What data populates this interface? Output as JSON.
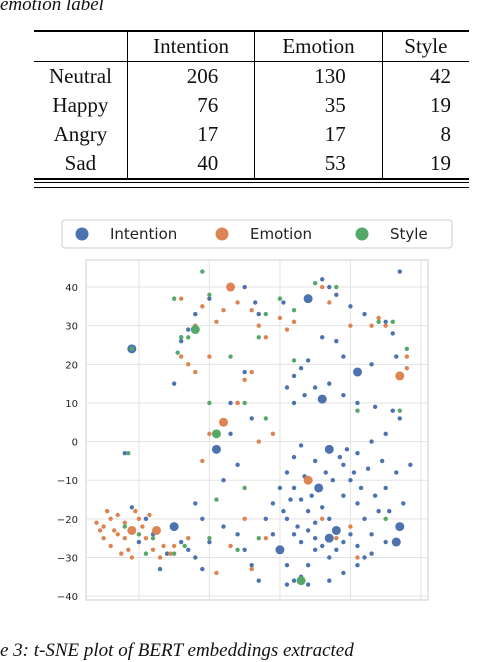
{
  "paper": {
    "top_caption": "emotion label",
    "bottom_caption": "e 3:  t-SNE plot of BERT embeddings extracted"
  },
  "table": {
    "columns": [
      "",
      "Intention",
      "Emotion",
      "Style"
    ],
    "rows": [
      {
        "label": "Neutral",
        "values": [
          "206",
          "130",
          "42"
        ]
      },
      {
        "label": "Happy",
        "values": [
          "76",
          "35",
          "19"
        ]
      },
      {
        "label": "Angry",
        "values": [
          "17",
          "17",
          "8"
        ]
      },
      {
        "label": "Sad",
        "values": [
          "40",
          "53",
          "19"
        ]
      }
    ]
  },
  "chart_data": {
    "type": "scatter",
    "title": "",
    "xlabel": "",
    "ylabel": "",
    "xlim": [
      -55,
      42
    ],
    "ylim": [
      -41,
      47
    ],
    "xticks": [
      -40,
      -20,
      0,
      20,
      40
    ],
    "yticks": [
      -40,
      -30,
      -20,
      -10,
      0,
      10,
      20,
      30,
      40
    ],
    "grid": true,
    "legend": "top",
    "series": [
      {
        "name": "Intention",
        "color": "#4c72b0",
        "points": [
          [
            -42,
            24
          ],
          [
            -28,
            27
          ],
          [
            -26,
            29
          ],
          [
            -30,
            15
          ],
          [
            -28,
            26
          ],
          [
            -24,
            33
          ],
          [
            -20,
            37
          ],
          [
            -10,
            40
          ],
          [
            -7,
            36
          ],
          [
            -6,
            33
          ],
          [
            1,
            36
          ],
          [
            8,
            37
          ],
          [
            12,
            42
          ],
          [
            14,
            40
          ],
          [
            16,
            38
          ],
          [
            20,
            35
          ],
          [
            24,
            33
          ],
          [
            30,
            31
          ],
          [
            34,
            44
          ],
          [
            33,
            22
          ],
          [
            32,
            28
          ],
          [
            26,
            20
          ],
          [
            22,
            18
          ],
          [
            18,
            22
          ],
          [
            16,
            26
          ],
          [
            12,
            27
          ],
          [
            8,
            21
          ],
          [
            6,
            19
          ],
          [
            4,
            17
          ],
          [
            2,
            14
          ],
          [
            4,
            10
          ],
          [
            7,
            12
          ],
          [
            10,
            14
          ],
          [
            12,
            11
          ],
          [
            14,
            15
          ],
          [
            18,
            12
          ],
          [
            22,
            10
          ],
          [
            27,
            9
          ],
          [
            32,
            8
          ],
          [
            34,
            6
          ],
          [
            30,
            2
          ],
          [
            26,
            0
          ],
          [
            22,
            -3
          ],
          [
            18,
            -6
          ],
          [
            14,
            -2
          ],
          [
            10,
            -5
          ],
          [
            6,
            -1
          ],
          [
            4,
            -4
          ],
          [
            2,
            -8
          ],
          [
            4,
            -12
          ],
          [
            6,
            -15
          ],
          [
            8,
            -18
          ],
          [
            10,
            -21
          ],
          [
            12,
            -17
          ],
          [
            14,
            -20
          ],
          [
            16,
            -23
          ],
          [
            18,
            -14
          ],
          [
            20,
            -10
          ],
          [
            22,
            -16
          ],
          [
            24,
            -20
          ],
          [
            26,
            -24
          ],
          [
            28,
            -18
          ],
          [
            30,
            -12
          ],
          [
            33,
            -8
          ],
          [
            35,
            -16
          ],
          [
            37,
            -6
          ],
          [
            34,
            -22
          ],
          [
            30,
            -26
          ],
          [
            26,
            -29
          ],
          [
            22,
            -32
          ],
          [
            18,
            -34
          ],
          [
            14,
            -30
          ],
          [
            10,
            -28
          ],
          [
            8,
            -32
          ],
          [
            6,
            -35
          ],
          [
            4,
            -36
          ],
          [
            2,
            -32
          ],
          [
            0,
            -28
          ],
          [
            -2,
            -24
          ],
          [
            -4,
            -20
          ],
          [
            -2,
            -16
          ],
          [
            0,
            -12
          ],
          [
            2,
            -20
          ],
          [
            4,
            -24
          ],
          [
            6,
            -26
          ],
          [
            8,
            -23
          ],
          [
            10,
            -25
          ],
          [
            12,
            -27
          ],
          [
            14,
            -25
          ],
          [
            16,
            -28
          ],
          [
            18,
            -26
          ],
          [
            20,
            -24
          ],
          [
            22,
            -27
          ],
          [
            24,
            -30
          ],
          [
            1,
            -18
          ],
          [
            3,
            -15
          ],
          [
            5,
            -22
          ],
          [
            7,
            -9
          ],
          [
            9,
            -14
          ],
          [
            11,
            -12
          ],
          [
            13,
            -8
          ],
          [
            15,
            -10
          ],
          [
            17,
            -4
          ],
          [
            19,
            -2
          ],
          [
            21,
            -8
          ],
          [
            23,
            -12
          ],
          [
            25,
            -7
          ],
          [
            27,
            -14
          ],
          [
            29,
            -5
          ],
          [
            31,
            -18
          ],
          [
            33,
            -26
          ],
          [
            -6,
            -36
          ],
          [
            -8,
            -32
          ],
          [
            -10,
            -28
          ],
          [
            -12,
            -24
          ],
          [
            -16,
            -22
          ],
          [
            -20,
            -26
          ],
          [
            -22,
            -33
          ],
          [
            -24,
            -30
          ],
          [
            -26,
            -28
          ],
          [
            -28,
            -26
          ],
          [
            -30,
            -22
          ],
          [
            -32,
            -29
          ],
          [
            -34,
            -33
          ],
          [
            -36,
            -24
          ],
          [
            -38,
            -20
          ],
          [
            -40,
            -26
          ],
          [
            -42,
            -17
          ],
          [
            -44,
            -3
          ],
          [
            -16,
            -10
          ],
          [
            -12,
            -6
          ],
          [
            -14,
            2
          ],
          [
            -18,
            -2
          ],
          [
            -22,
            -20
          ],
          [
            -24,
            -16
          ],
          [
            -10,
            18
          ],
          [
            -14,
            10
          ],
          [
            -8,
            6
          ],
          [
            14,
            -36
          ],
          [
            8,
            -37
          ],
          [
            2,
            -37
          ]
        ]
      },
      {
        "name": "Emotion",
        "color": "#dd8452",
        "points": [
          [
            -50,
            -22
          ],
          [
            -48,
            -20
          ],
          [
            -46,
            -24
          ],
          [
            -44,
            -21
          ],
          [
            -52,
            -21
          ],
          [
            -50,
            -25
          ],
          [
            -48,
            -27
          ],
          [
            -46,
            -19
          ],
          [
            -44,
            -25
          ],
          [
            -42,
            -23
          ],
          [
            -40,
            -20
          ],
          [
            -47,
            -23
          ],
          [
            -49,
            -18
          ],
          [
            -51,
            -23
          ],
          [
            -43,
            -28
          ],
          [
            -38,
            -25
          ],
          [
            -36,
            -28
          ],
          [
            -34,
            -30
          ],
          [
            -33,
            -27
          ],
          [
            -31,
            -29
          ],
          [
            -35,
            -23
          ],
          [
            -37,
            -19
          ],
          [
            -42,
            -30
          ],
          [
            -45,
            -29
          ],
          [
            -41,
            -18
          ],
          [
            -39,
            -22
          ],
          [
            -28,
            37
          ],
          [
            -24,
            30
          ],
          [
            -22,
            35
          ],
          [
            -18,
            31
          ],
          [
            -16,
            34
          ],
          [
            -14,
            40
          ],
          [
            -12,
            36
          ],
          [
            -8,
            34
          ],
          [
            -6,
            30
          ],
          [
            -4,
            27
          ],
          [
            0,
            32
          ],
          [
            2,
            29
          ],
          [
            4,
            31
          ],
          [
            -8,
            18
          ],
          [
            -10,
            16
          ],
          [
            -12,
            10
          ],
          [
            -16,
            5
          ],
          [
            -20,
            2
          ],
          [
            -22,
            -5
          ],
          [
            -6,
            0
          ],
          [
            -2,
            2
          ],
          [
            20,
            30
          ],
          [
            26,
            30
          ],
          [
            28,
            32
          ],
          [
            30,
            30
          ],
          [
            36,
            22
          ],
          [
            36,
            19
          ],
          [
            34,
            17
          ],
          [
            12,
            40
          ],
          [
            14,
            36
          ],
          [
            -26,
            20
          ],
          [
            -28,
            22
          ],
          [
            -24,
            18
          ],
          [
            -20,
            22
          ],
          [
            12,
            -20
          ],
          [
            16,
            -25
          ],
          [
            20,
            -22
          ],
          [
            22,
            -30
          ],
          [
            8,
            -10
          ],
          [
            -10,
            -20
          ],
          [
            -14,
            -27
          ],
          [
            -18,
            -34
          ],
          [
            -26,
            -25
          ],
          [
            -30,
            -27
          ],
          [
            -4,
            -25
          ],
          [
            -8,
            -33
          ],
          [
            -12,
            10
          ]
        ]
      },
      {
        "name": "Style",
        "color": "#55a868",
        "points": [
          [
            -43,
            -3
          ],
          [
            -30,
            37
          ],
          [
            -28,
            27
          ],
          [
            -26,
            27
          ],
          [
            -20,
            38
          ],
          [
            -22,
            44
          ],
          [
            -42,
            24
          ],
          [
            -24,
            29
          ],
          [
            -29,
            23
          ],
          [
            -20,
            10
          ],
          [
            -14,
            22
          ],
          [
            -10,
            10
          ],
          [
            -6,
            27
          ],
          [
            -4,
            33
          ],
          [
            0,
            37
          ],
          [
            4,
            34
          ],
          [
            10,
            41
          ],
          [
            16,
            40
          ],
          [
            6,
            -36
          ],
          [
            32,
            31
          ],
          [
            28,
            31
          ],
          [
            22,
            8
          ],
          [
            34,
            8
          ],
          [
            36,
            24
          ],
          [
            30,
            -20
          ],
          [
            -20,
            -25
          ],
          [
            -27,
            -27
          ],
          [
            -30,
            -29
          ],
          [
            -40,
            -24
          ],
          [
            -18,
            2
          ],
          [
            -6,
            -25
          ],
          [
            -12,
            -28
          ],
          [
            4,
            21
          ],
          [
            -4,
            6
          ],
          [
            -10,
            -12
          ],
          [
            -18,
            -15
          ],
          [
            -44,
            -22
          ],
          [
            -38,
            -29
          ],
          [
            -36,
            -25
          ]
        ]
      }
    ]
  }
}
